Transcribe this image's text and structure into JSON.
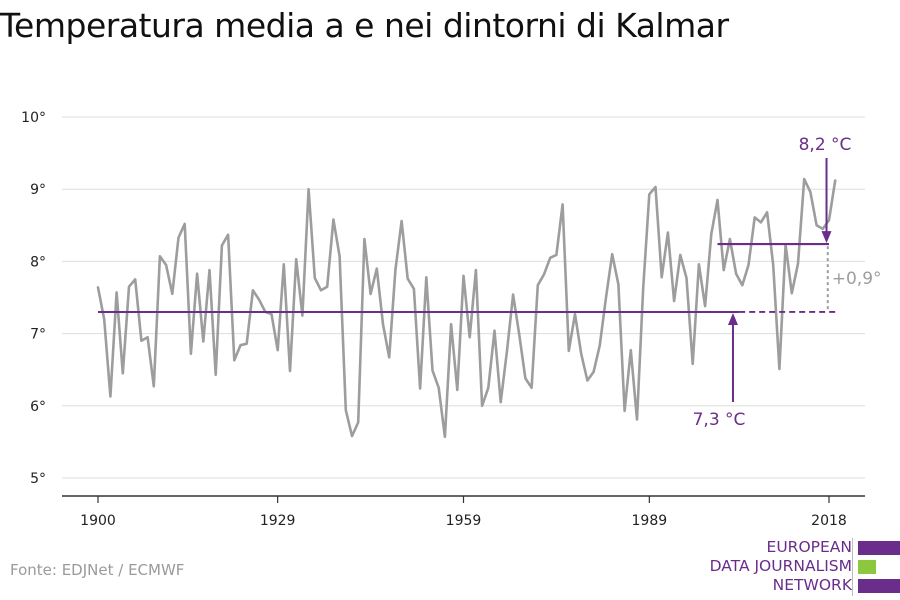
{
  "title": "Temperatura media a e nei dintorni di Kalmar",
  "source": "Fonte: EDJNet / ECMWF",
  "logo": {
    "line1": "EUROPEAN",
    "line2": "DATA JOURNALISM",
    "line3": "NETWORK",
    "colors": {
      "purple": "#6b2d8b",
      "green": "#8dc63f"
    }
  },
  "colors": {
    "series": "#9d9d9d",
    "accent": "#6b2d8b",
    "grid": "#dddddd",
    "axis": "#333333",
    "diff": "#9d9d9d"
  },
  "chart_data": {
    "type": "line",
    "title": "",
    "xlabel": "",
    "ylabel": "",
    "x_range": [
      1900,
      2019
    ],
    "ylim": [
      5,
      10
    ],
    "x_ticks": [
      1900,
      1929,
      1959,
      1989,
      2018
    ],
    "x_tick_labels": [
      "1900",
      "1929",
      "1959",
      "1989",
      "2018"
    ],
    "y_ticks": [
      5,
      6,
      7,
      8,
      9,
      10
    ],
    "y_tick_labels": [
      "5°",
      "6°",
      "7°",
      "8°",
      "9°",
      "10°"
    ],
    "grid": true,
    "series": [
      {
        "x": [
          1900,
          1901,
          1902,
          1903,
          1904,
          1905,
          1906,
          1907,
          1908,
          1909,
          1910,
          1911,
          1912,
          1913,
          1914,
          1915,
          1916,
          1917,
          1918,
          1919,
          1920,
          1921,
          1922,
          1923,
          1924,
          1925,
          1926,
          1927,
          1928,
          1929,
          1930,
          1931,
          1932,
          1933,
          1934,
          1935,
          1936,
          1937,
          1938,
          1939,
          1940,
          1941,
          1942,
          1943,
          1944,
          1945,
          1946,
          1947,
          1948,
          1949,
          1950,
          1951,
          1952,
          1953,
          1954,
          1955,
          1956,
          1957,
          1958,
          1959,
          1960,
          1961,
          1962,
          1963,
          1964,
          1965,
          1966,
          1967,
          1968,
          1969,
          1970,
          1971,
          1972,
          1973,
          1974,
          1975,
          1976,
          1977,
          1978,
          1979,
          1980,
          1981,
          1982,
          1983,
          1984,
          1985,
          1986,
          1987,
          1988,
          1989,
          1990,
          1991,
          1992,
          1993,
          1994,
          1995,
          1996,
          1997,
          1998,
          1999,
          2000,
          2001,
          2002,
          2003,
          2004,
          2005,
          2006,
          2007,
          2008,
          2009,
          2010,
          2011,
          2012,
          2013,
          2014,
          2015,
          2016,
          2017,
          2018,
          2019
        ],
        "values": [
          7.64,
          7.2,
          6.13,
          7.57,
          6.45,
          7.65,
          7.75,
          6.9,
          6.95,
          6.27,
          8.07,
          7.95,
          7.55,
          8.33,
          8.52,
          6.72,
          7.83,
          6.89,
          7.88,
          6.43,
          8.22,
          8.37,
          6.63,
          6.84,
          6.86,
          7.6,
          7.47,
          7.3,
          7.27,
          6.77,
          7.96,
          6.48,
          8.03,
          7.25,
          9.0,
          7.77,
          7.6,
          7.65,
          8.58,
          8.07,
          5.94,
          5.58,
          5.77,
          8.31,
          7.55,
          7.9,
          7.13,
          6.67,
          7.88,
          8.56,
          7.76,
          7.62,
          6.24,
          7.78,
          6.49,
          6.25,
          5.57,
          7.13,
          6.22,
          7.8,
          6.95,
          7.88,
          6.0,
          6.25,
          7.04,
          6.05,
          6.75,
          7.54,
          6.98,
          6.38,
          6.25,
          7.67,
          7.82,
          8.05,
          8.09,
          8.79,
          6.76,
          7.27,
          6.72,
          6.35,
          6.47,
          6.84,
          7.5,
          8.1,
          7.68,
          5.93,
          6.77,
          5.81,
          7.63,
          8.93,
          9.03,
          7.78,
          8.4,
          7.45,
          8.09,
          7.77,
          6.58,
          7.96,
          7.38,
          8.38,
          8.85,
          7.88,
          8.31,
          7.83,
          7.67,
          7.95,
          8.61,
          8.54,
          8.68,
          7.95,
          6.51,
          8.23,
          7.56,
          7.97,
          9.14,
          8.96,
          8.5,
          8.45,
          8.57,
          9.12
        ]
      }
    ],
    "reference_lines": [
      {
        "label": "7,3 °C",
        "value": 7.3
      },
      {
        "label": "8,2 °C",
        "value": 8.24
      }
    ],
    "difference_label": "+0,9°"
  }
}
